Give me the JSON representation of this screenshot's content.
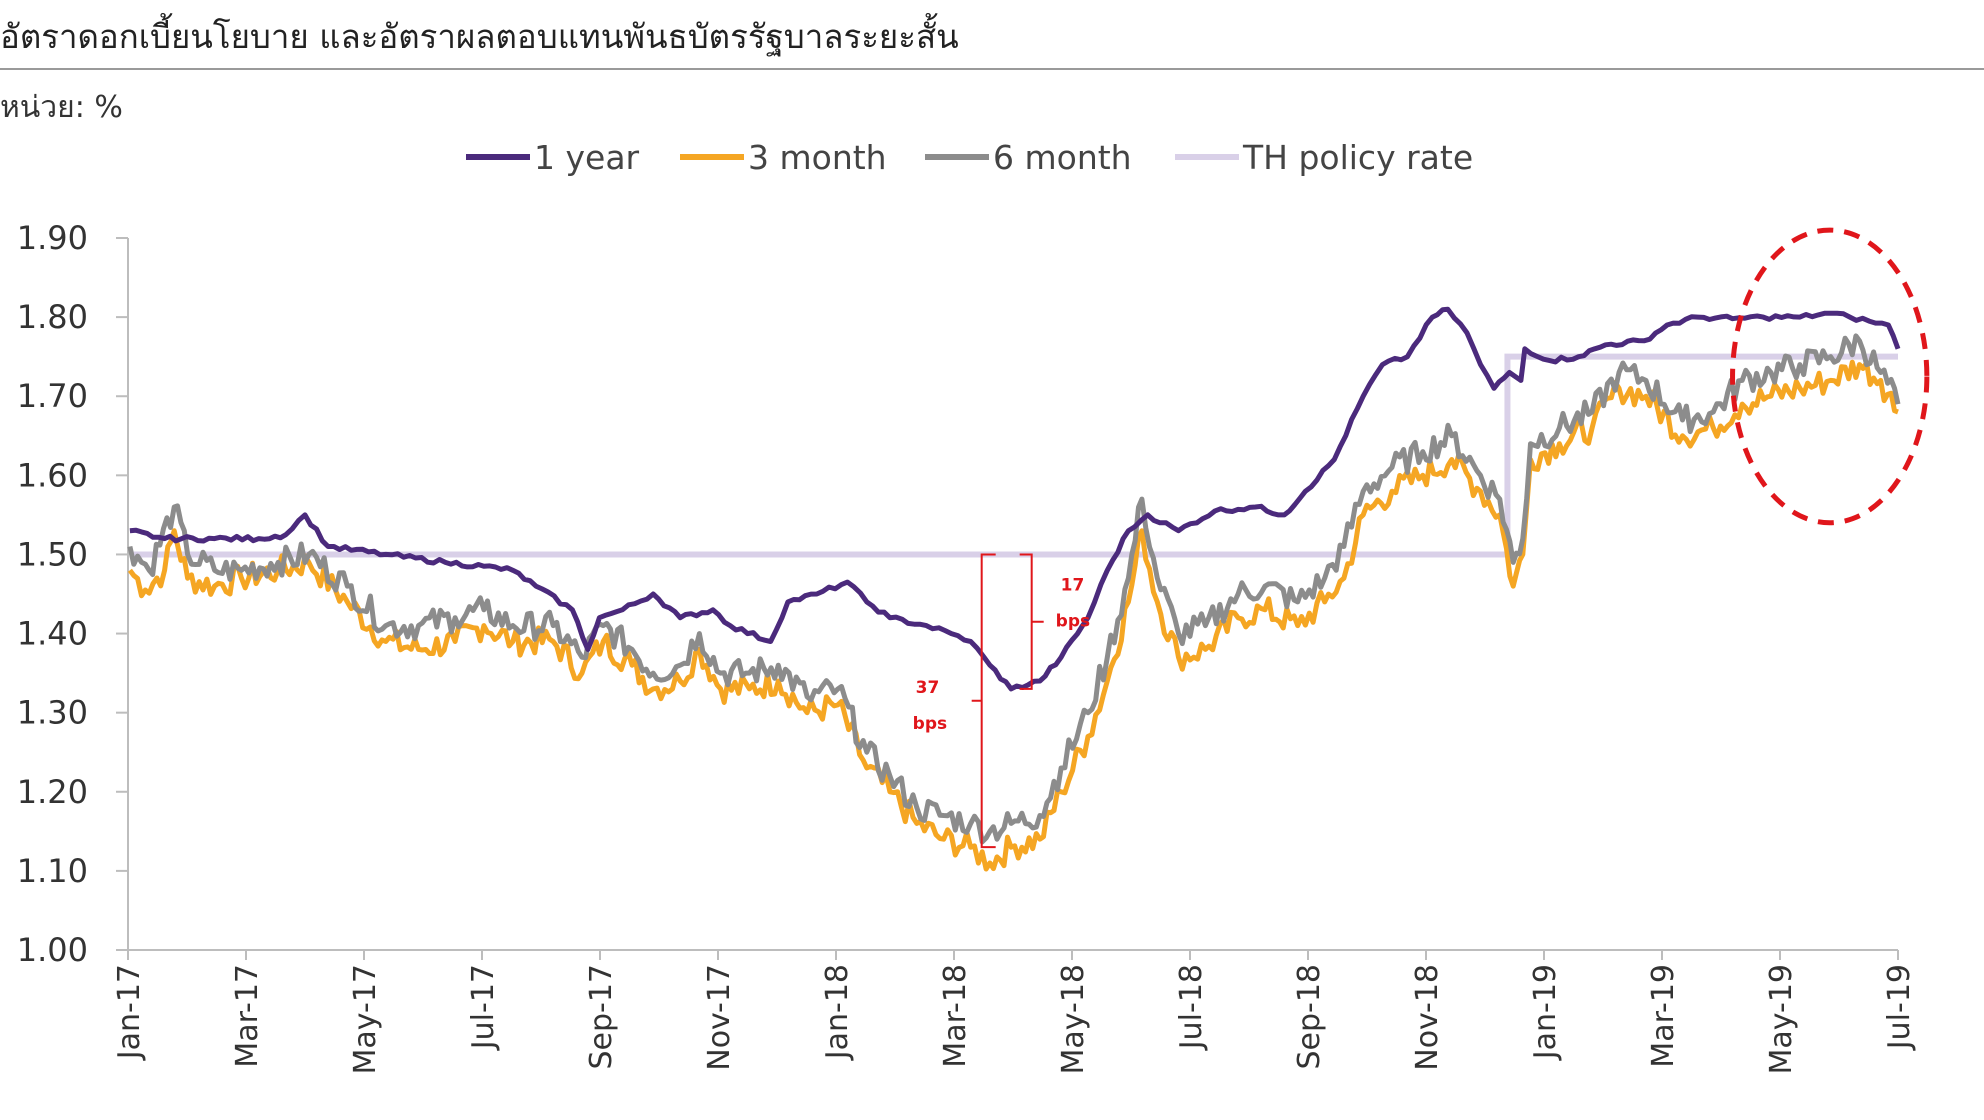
{
  "header": {
    "title": "อัตราดอกเบี้ยนโยบาย และอัตราผลตอบแทนพันธบัตรรัฐบาลระยะสั้น",
    "unit": "หน่วย: %"
  },
  "chart_data": {
    "type": "line",
    "title": "อัตราดอกเบี้ยนโยบาย และอัตราผลตอบแทนพันธบัตรรัฐบาลระยะสั้น",
    "ylabel": "",
    "xlabel": "",
    "ylim": [
      1.0,
      1.9
    ],
    "yticks": [
      "1.00",
      "1.10",
      "1.20",
      "1.30",
      "1.40",
      "1.50",
      "1.60",
      "1.70",
      "1.80",
      "1.90"
    ],
    "x_tick_labels": [
      "Jan-17",
      "Mar-17",
      "May-17",
      "Jul-17",
      "Sep-17",
      "Nov-17",
      "Jan-18",
      "Mar-18",
      "May-18",
      "Jul-18",
      "Sep-18",
      "Nov-18",
      "Jan-19",
      "Mar-19",
      "May-19",
      "Jul-19"
    ],
    "x_range": [
      "2017-01-01",
      "2019-07-10"
    ],
    "legend": {
      "position": "top",
      "entries": [
        "1 year",
        "3 month",
        "6 month",
        "TH policy rate"
      ]
    },
    "grid": false,
    "series": [
      {
        "name": "1 year",
        "color": "#4b2a7c",
        "points": [
          [
            "2017-01-02",
            1.53
          ],
          [
            "2017-01-20",
            1.52
          ],
          [
            "2017-02-15",
            1.52
          ],
          [
            "2017-03-10",
            1.52
          ],
          [
            "2017-03-24",
            1.525
          ],
          [
            "2017-04-03",
            1.55
          ],
          [
            "2017-04-15",
            1.51
          ],
          [
            "2017-05-15",
            1.5
          ],
          [
            "2017-06-15",
            1.49
          ],
          [
            "2017-07-05",
            1.485
          ],
          [
            "2017-07-20",
            1.48
          ],
          [
            "2017-08-01",
            1.46
          ],
          [
            "2017-08-20",
            1.43
          ],
          [
            "2017-08-28",
            1.38
          ],
          [
            "2017-09-03",
            1.42
          ],
          [
            "2017-09-15",
            1.43
          ],
          [
            "2017-10-01",
            1.45
          ],
          [
            "2017-10-15",
            1.42
          ],
          [
            "2017-11-01",
            1.43
          ],
          [
            "2017-11-10",
            1.41
          ],
          [
            "2017-12-01",
            1.39
          ],
          [
            "2017-12-10",
            1.44
          ],
          [
            "2017-12-25",
            1.45
          ],
          [
            "2018-01-10",
            1.465
          ],
          [
            "2018-01-20",
            1.44
          ],
          [
            "2018-02-01",
            1.42
          ],
          [
            "2018-02-20",
            1.41
          ],
          [
            "2018-03-05",
            1.4
          ],
          [
            "2018-03-15",
            1.39
          ],
          [
            "2018-03-25",
            1.36
          ],
          [
            "2018-04-05",
            1.33
          ],
          [
            "2018-04-20",
            1.34
          ],
          [
            "2018-05-01",
            1.37
          ],
          [
            "2018-05-15",
            1.42
          ],
          [
            "2018-05-25",
            1.48
          ],
          [
            "2018-06-05",
            1.53
          ],
          [
            "2018-06-15",
            1.55
          ],
          [
            "2018-07-01",
            1.53
          ],
          [
            "2018-07-20",
            1.555
          ],
          [
            "2018-08-10",
            1.56
          ],
          [
            "2018-08-25",
            1.55
          ],
          [
            "2018-09-05",
            1.58
          ],
          [
            "2018-09-20",
            1.62
          ],
          [
            "2018-10-05",
            1.7
          ],
          [
            "2018-10-15",
            1.74
          ],
          [
            "2018-10-28",
            1.75
          ],
          [
            "2018-11-10",
            1.8
          ],
          [
            "2018-11-18",
            1.81
          ],
          [
            "2018-11-28",
            1.78
          ],
          [
            "2018-12-05",
            1.74
          ],
          [
            "2018-12-12",
            1.71
          ],
          [
            "2018-12-20",
            1.73
          ],
          [
            "2018-12-26",
            1.72
          ],
          [
            "2018-12-28",
            1.76
          ],
          [
            "2019-01-10",
            1.745
          ],
          [
            "2019-01-25",
            1.75
          ],
          [
            "2019-02-08",
            1.765
          ],
          [
            "2019-02-28",
            1.77
          ],
          [
            "2019-03-12",
            1.79
          ],
          [
            "2019-03-28",
            1.8
          ],
          [
            "2019-04-15",
            1.798
          ],
          [
            "2019-05-01",
            1.8
          ],
          [
            "2019-05-20",
            1.8
          ],
          [
            "2019-06-05",
            1.805
          ],
          [
            "2019-06-15",
            1.8
          ],
          [
            "2019-06-25",
            1.795
          ],
          [
            "2019-07-05",
            1.79
          ],
          [
            "2019-07-10",
            1.76
          ]
        ]
      },
      {
        "name": "3 month",
        "color": "#f5a623",
        "points": [
          [
            "2017-01-02",
            1.48
          ],
          [
            "2017-01-10",
            1.455
          ],
          [
            "2017-01-20",
            1.48
          ],
          [
            "2017-01-25",
            1.53
          ],
          [
            "2017-02-01",
            1.47
          ],
          [
            "2017-02-15",
            1.46
          ],
          [
            "2017-03-01",
            1.47
          ],
          [
            "2017-03-20",
            1.48
          ],
          [
            "2017-04-05",
            1.49
          ],
          [
            "2017-04-25",
            1.44
          ],
          [
            "2017-05-15",
            1.39
          ],
          [
            "2017-06-01",
            1.38
          ],
          [
            "2017-06-20",
            1.39
          ],
          [
            "2017-07-05",
            1.41
          ],
          [
            "2017-07-20",
            1.39
          ],
          [
            "2017-08-10",
            1.39
          ],
          [
            "2017-08-25",
            1.35
          ],
          [
            "2017-09-05",
            1.39
          ],
          [
            "2017-09-20",
            1.36
          ],
          [
            "2017-10-01",
            1.33
          ],
          [
            "2017-10-15",
            1.34
          ],
          [
            "2017-10-25",
            1.38
          ],
          [
            "2017-11-05",
            1.33
          ],
          [
            "2017-11-20",
            1.33
          ],
          [
            "2017-12-05",
            1.34
          ],
          [
            "2017-12-20",
            1.3
          ],
          [
            "2018-01-05",
            1.31
          ],
          [
            "2018-01-20",
            1.23
          ],
          [
            "2018-02-01",
            1.2
          ],
          [
            "2018-02-15",
            1.16
          ],
          [
            "2018-03-01",
            1.14
          ],
          [
            "2018-03-15",
            1.13
          ],
          [
            "2018-03-25",
            1.11
          ],
          [
            "2018-04-05",
            1.13
          ],
          [
            "2018-04-20",
            1.14
          ],
          [
            "2018-05-01",
            1.2
          ],
          [
            "2018-05-15",
            1.27
          ],
          [
            "2018-05-25",
            1.34
          ],
          [
            "2018-06-05",
            1.44
          ],
          [
            "2018-06-12",
            1.53
          ],
          [
            "2018-06-20",
            1.44
          ],
          [
            "2018-07-01",
            1.37
          ],
          [
            "2018-07-15",
            1.38
          ],
          [
            "2018-08-01",
            1.42
          ],
          [
            "2018-08-15",
            1.43
          ],
          [
            "2018-09-01",
            1.41
          ],
          [
            "2018-09-15",
            1.44
          ],
          [
            "2018-09-25",
            1.47
          ],
          [
            "2018-10-05",
            1.55
          ],
          [
            "2018-10-20",
            1.58
          ],
          [
            "2018-11-05",
            1.6
          ],
          [
            "2018-11-20",
            1.62
          ],
          [
            "2018-12-05",
            1.58
          ],
          [
            "2018-12-15",
            1.55
          ],
          [
            "2018-12-22",
            1.46
          ],
          [
            "2018-12-27",
            1.5
          ],
          [
            "2018-12-31",
            1.62
          ],
          [
            "2019-01-15",
            1.64
          ],
          [
            "2019-02-01",
            1.66
          ],
          [
            "2019-02-15",
            1.71
          ],
          [
            "2019-03-01",
            1.7
          ],
          [
            "2019-03-20",
            1.65
          ],
          [
            "2019-04-05",
            1.66
          ],
          [
            "2019-04-20",
            1.69
          ],
          [
            "2019-05-05",
            1.7
          ],
          [
            "2019-05-20",
            1.71
          ],
          [
            "2019-06-05",
            1.72
          ],
          [
            "2019-06-20",
            1.74
          ],
          [
            "2019-07-01",
            1.72
          ],
          [
            "2019-07-10",
            1.68
          ]
        ]
      },
      {
        "name": "6 month",
        "color": "#8c8c8c",
        "points": [
          [
            "2017-01-02",
            1.51
          ],
          [
            "2017-01-12",
            1.48
          ],
          [
            "2017-01-25",
            1.56
          ],
          [
            "2017-02-01",
            1.5
          ],
          [
            "2017-02-15",
            1.48
          ],
          [
            "2017-03-01",
            1.48
          ],
          [
            "2017-03-20",
            1.49
          ],
          [
            "2017-04-05",
            1.5
          ],
          [
            "2017-04-25",
            1.46
          ],
          [
            "2017-05-15",
            1.41
          ],
          [
            "2017-06-01",
            1.41
          ],
          [
            "2017-06-20",
            1.42
          ],
          [
            "2017-07-05",
            1.43
          ],
          [
            "2017-07-20",
            1.41
          ],
          [
            "2017-08-10",
            1.41
          ],
          [
            "2017-08-25",
            1.37
          ],
          [
            "2017-09-05",
            1.41
          ],
          [
            "2017-09-20",
            1.38
          ],
          [
            "2017-10-01",
            1.35
          ],
          [
            "2017-10-15",
            1.36
          ],
          [
            "2017-10-25",
            1.4
          ],
          [
            "2017-11-05",
            1.35
          ],
          [
            "2017-11-20",
            1.35
          ],
          [
            "2017-12-05",
            1.36
          ],
          [
            "2017-12-20",
            1.32
          ],
          [
            "2018-01-05",
            1.33
          ],
          [
            "2018-01-20",
            1.25
          ],
          [
            "2018-02-01",
            1.22
          ],
          [
            "2018-02-15",
            1.18
          ],
          [
            "2018-03-01",
            1.17
          ],
          [
            "2018-03-15",
            1.16
          ],
          [
            "2018-03-25",
            1.15
          ],
          [
            "2018-04-05",
            1.16
          ],
          [
            "2018-04-20",
            1.17
          ],
          [
            "2018-05-01",
            1.23
          ],
          [
            "2018-05-15",
            1.3
          ],
          [
            "2018-05-25",
            1.37
          ],
          [
            "2018-06-05",
            1.47
          ],
          [
            "2018-06-12",
            1.57
          ],
          [
            "2018-06-20",
            1.47
          ],
          [
            "2018-07-01",
            1.4
          ],
          [
            "2018-07-15",
            1.41
          ],
          [
            "2018-08-01",
            1.45
          ],
          [
            "2018-08-15",
            1.46
          ],
          [
            "2018-09-01",
            1.44
          ],
          [
            "2018-09-15",
            1.47
          ],
          [
            "2018-09-25",
            1.51
          ],
          [
            "2018-10-05",
            1.58
          ],
          [
            "2018-10-20",
            1.61
          ],
          [
            "2018-11-05",
            1.63
          ],
          [
            "2018-11-20",
            1.65
          ],
          [
            "2018-12-05",
            1.6
          ],
          [
            "2018-12-15",
            1.57
          ],
          [
            "2018-12-22",
            1.49
          ],
          [
            "2018-12-27",
            1.52
          ],
          [
            "2018-12-31",
            1.64
          ],
          [
            "2019-01-15",
            1.66
          ],
          [
            "2019-02-01",
            1.68
          ],
          [
            "2019-02-15",
            1.73
          ],
          [
            "2019-03-01",
            1.72
          ],
          [
            "2019-03-20",
            1.67
          ],
          [
            "2019-04-05",
            1.68
          ],
          [
            "2019-04-20",
            1.72
          ],
          [
            "2019-05-05",
            1.73
          ],
          [
            "2019-05-20",
            1.74
          ],
          [
            "2019-06-05",
            1.75
          ],
          [
            "2019-06-20",
            1.77
          ],
          [
            "2019-07-01",
            1.73
          ],
          [
            "2019-07-10",
            1.69
          ]
        ]
      },
      {
        "name": "TH policy rate",
        "color": "#d9d0e8",
        "points": [
          [
            "2017-01-02",
            1.5
          ],
          [
            "2018-12-19",
            1.5
          ],
          [
            "2018-12-20",
            1.75
          ],
          [
            "2019-07-10",
            1.75
          ]
        ]
      }
    ],
    "annotations": [
      {
        "label_line1": "17",
        "label_line2": "bps",
        "date": "2018-03-28",
        "from": 1.5,
        "to": 1.33
      },
      {
        "label_line1": "37",
        "label_line2": "bps",
        "date": "2018-03-28",
        "from": 1.5,
        "to": 1.13
      }
    ],
    "highlight": {
      "shape": "ellipse",
      "color": "#e0161b",
      "style": "dashed",
      "start": "2019-04-15",
      "end": "2019-07-25",
      "y_low": 1.54,
      "y_high": 1.91
    }
  }
}
